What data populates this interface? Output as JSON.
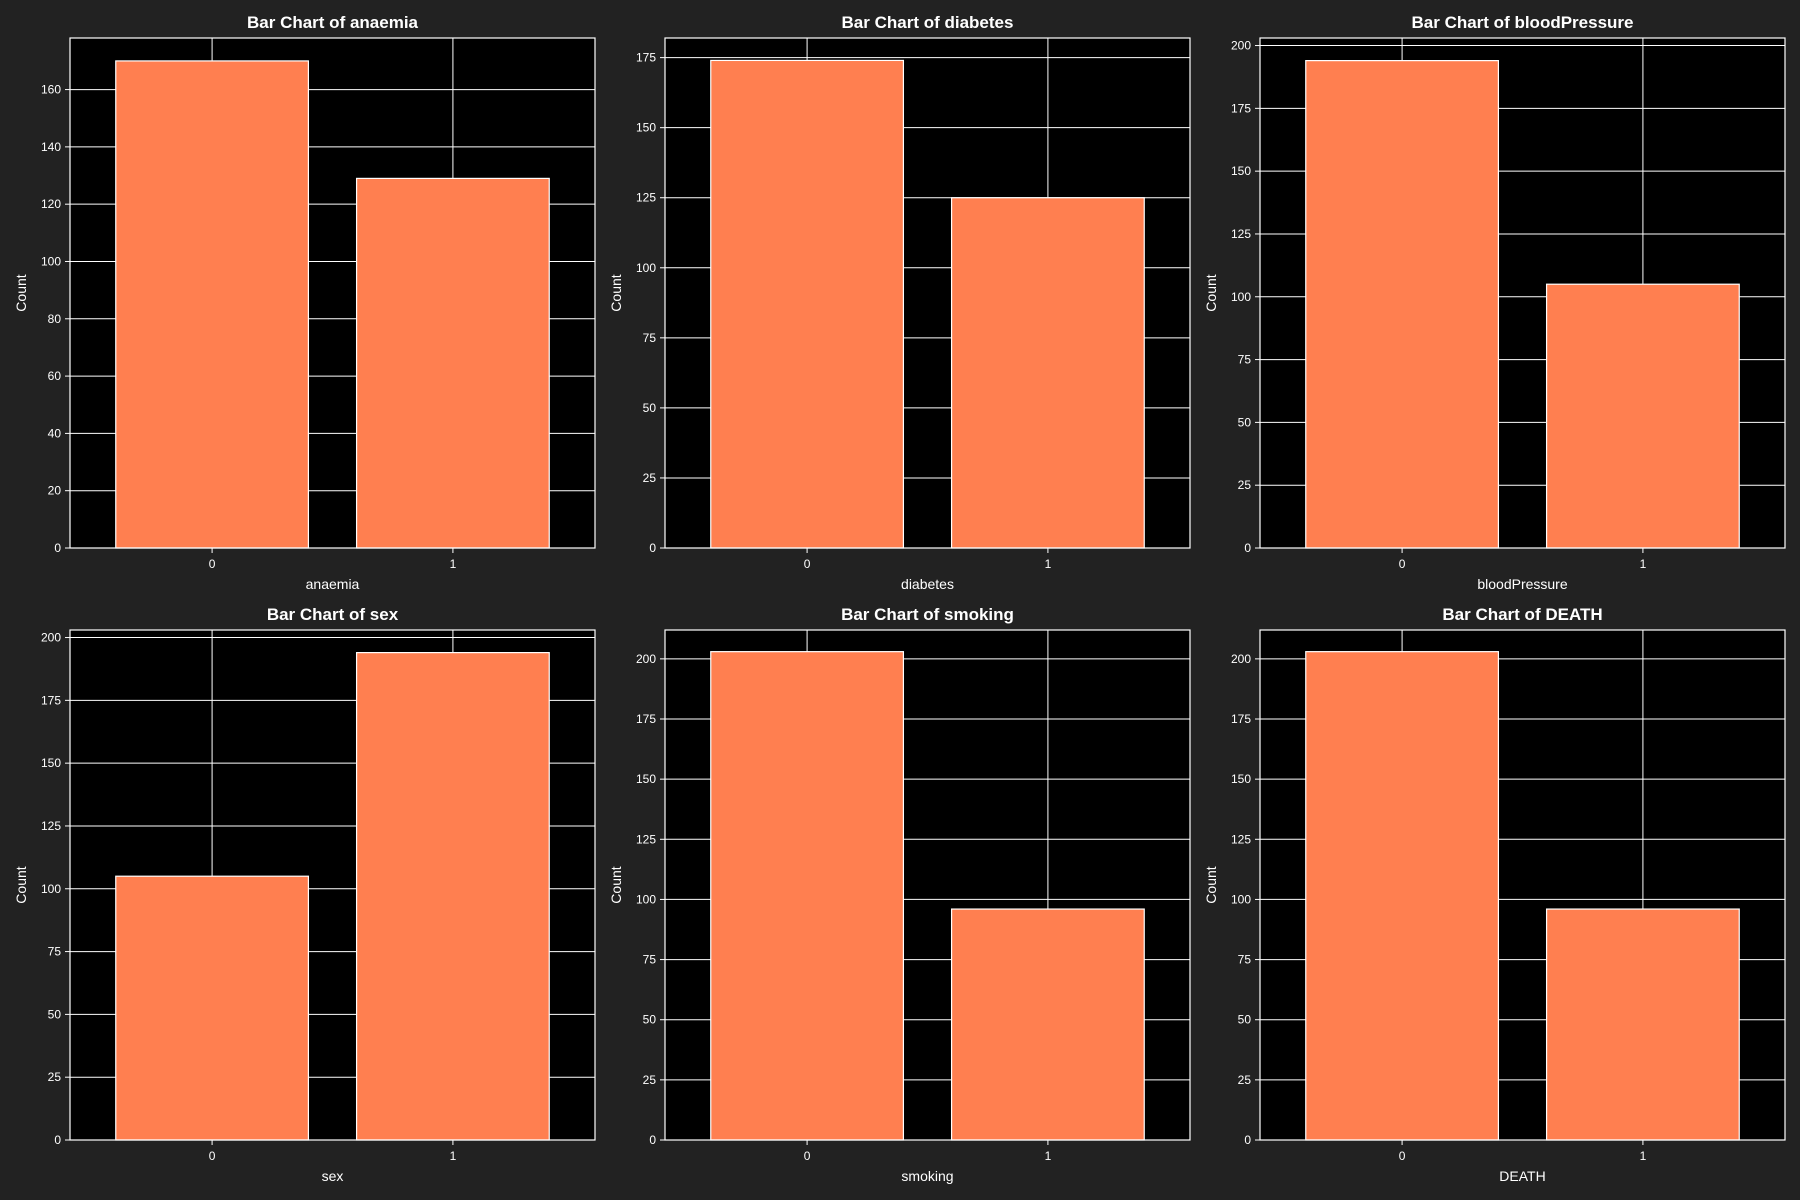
{
  "colors": {
    "figure_bg": "#222222",
    "axes_bg": "#000000",
    "bar_fill": "#ff7f50",
    "bar_edge": "#ffffff",
    "grid": "#ffffff",
    "text": "#ffffff"
  },
  "chart_data": [
    {
      "type": "bar",
      "title": "Bar Chart of anaemia",
      "xlabel": "anaemia",
      "ylabel": "Count",
      "categories": [
        "0",
        "1"
      ],
      "values": [
        170,
        129
      ],
      "ylim": [
        0,
        178
      ],
      "yticks": [
        0,
        20,
        40,
        60,
        80,
        100,
        120,
        140,
        160
      ],
      "grid": true
    },
    {
      "type": "bar",
      "title": "Bar Chart of diabetes",
      "xlabel": "diabetes",
      "ylabel": "Count",
      "categories": [
        "0",
        "1"
      ],
      "values": [
        174,
        125
      ],
      "ylim": [
        0,
        182
      ],
      "yticks": [
        0,
        25,
        50,
        75,
        100,
        125,
        150,
        175
      ],
      "grid": true
    },
    {
      "type": "bar",
      "title": "Bar Chart of bloodPressure",
      "xlabel": "bloodPressure",
      "ylabel": "Count",
      "categories": [
        "0",
        "1"
      ],
      "values": [
        194,
        105
      ],
      "ylim": [
        0,
        203
      ],
      "yticks": [
        0,
        25,
        50,
        75,
        100,
        125,
        150,
        175,
        200
      ],
      "grid": true
    },
    {
      "type": "bar",
      "title": "Bar Chart of sex",
      "xlabel": "sex",
      "ylabel": "Count",
      "categories": [
        "0",
        "1"
      ],
      "values": [
        105,
        194
      ],
      "ylim": [
        0,
        203
      ],
      "yticks": [
        0,
        25,
        50,
        75,
        100,
        125,
        150,
        175,
        200
      ],
      "grid": true
    },
    {
      "type": "bar",
      "title": "Bar Chart of smoking",
      "xlabel": "smoking",
      "ylabel": "Count",
      "categories": [
        "0",
        "1"
      ],
      "values": [
        203,
        96
      ],
      "ylim": [
        0,
        212
      ],
      "yticks": [
        0,
        25,
        50,
        75,
        100,
        125,
        150,
        175,
        200
      ],
      "grid": true
    },
    {
      "type": "bar",
      "title": "Bar Chart of DEATH",
      "xlabel": "DEATH",
      "ylabel": "Count",
      "categories": [
        "0",
        "1"
      ],
      "values": [
        203,
        96
      ],
      "ylim": [
        0,
        212
      ],
      "yticks": [
        0,
        25,
        50,
        75,
        100,
        125,
        150,
        175,
        200
      ],
      "grid": true
    }
  ]
}
